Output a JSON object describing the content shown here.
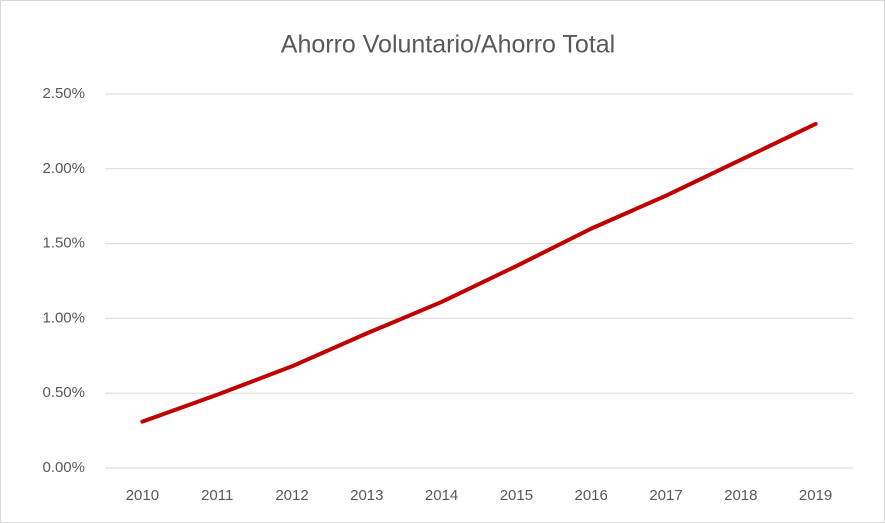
{
  "chart_data": {
    "type": "line",
    "title": "Ahorro Voluntario/Ahorro Total",
    "categories": [
      "2010",
      "2011",
      "2012",
      "2013",
      "2014",
      "2015",
      "2016",
      "2017",
      "2018",
      "2019"
    ],
    "series": [
      {
        "name": "Ahorro Voluntario/Ahorro Total",
        "color": "#c00000",
        "values": [
          0.31,
          0.49,
          0.68,
          0.9,
          1.11,
          1.35,
          1.6,
          1.82,
          2.06,
          2.3
        ]
      }
    ],
    "ylim": [
      0,
      2.5
    ],
    "yticks": [
      {
        "value": 0,
        "label": "0.00%"
      },
      {
        "value": 0.5,
        "label": "0.50%"
      },
      {
        "value": 1,
        "label": "1.00%"
      },
      {
        "value": 1.5,
        "label": "1.50%"
      },
      {
        "value": 2,
        "label": "2.00%"
      },
      {
        "value": 2.5,
        "label": "2.50%"
      }
    ],
    "grid": true
  }
}
